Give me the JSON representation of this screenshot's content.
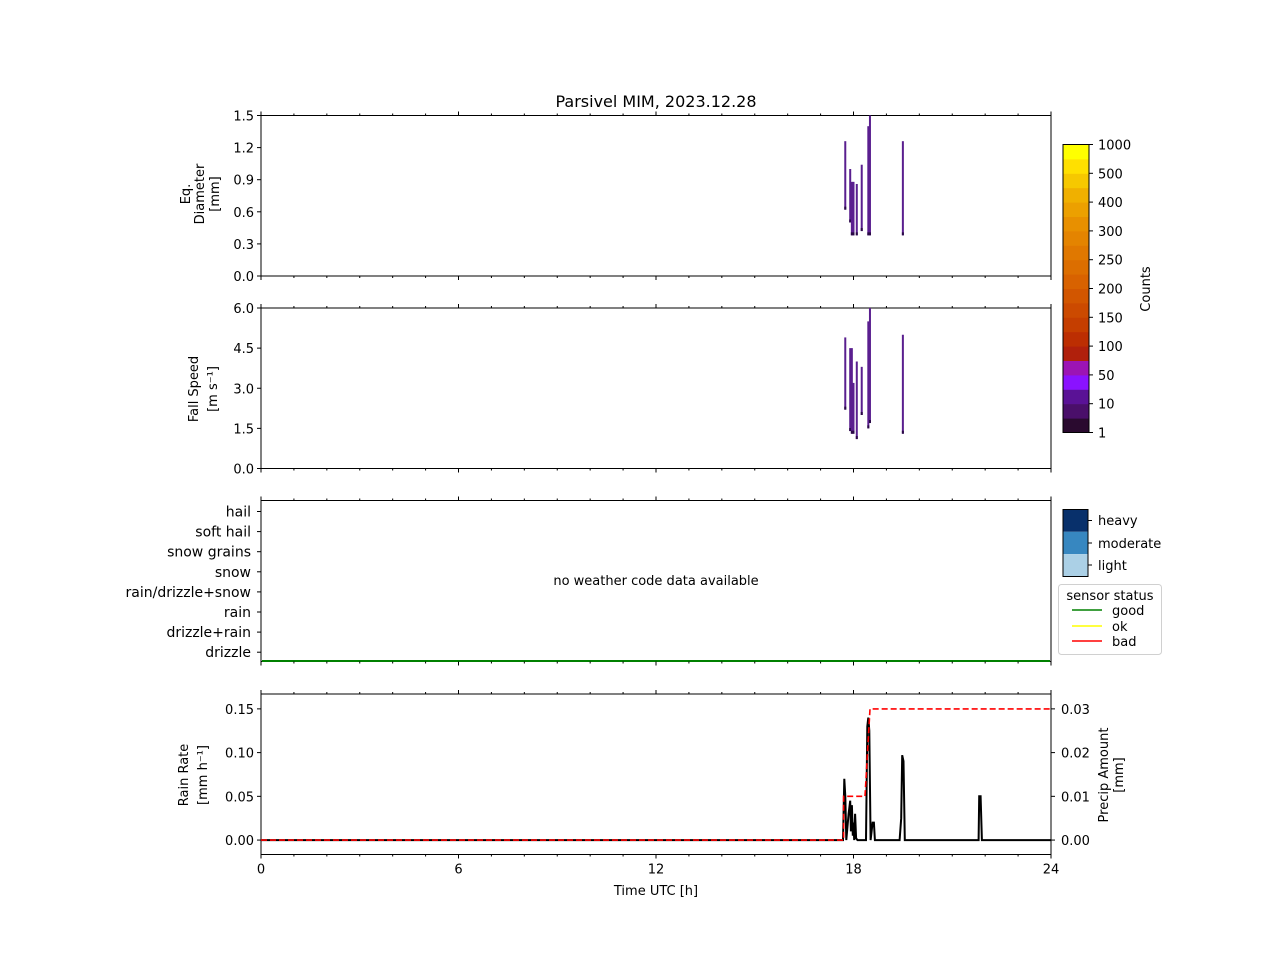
{
  "title": "Parsivel MIM, 2023.12.28",
  "colors": {
    "dsd": "#5a1f8f",
    "dsd_dark": "#2a0a45",
    "status_good": "#008000",
    "status_ok": "#ffff00",
    "status_bad": "#ff0000",
    "rain_rate": "#000000",
    "precip_amount": "#ff0000"
  },
  "colorbar": {
    "label": "Counts",
    "ticks": [
      "1000",
      "500",
      "400",
      "300",
      "250",
      "200",
      "150",
      "100",
      "50",
      "10",
      "1"
    ],
    "colors": [
      "#2a0a2f",
      "#4a0f6a",
      "#5a1296",
      "#8a12ff",
      "#9c14b4",
      "#b0200c",
      "#bc2e02",
      "#c53e00",
      "#cc4a00",
      "#d25600",
      "#d86200",
      "#dc6e00",
      "#e07800",
      "#e48400",
      "#e89000",
      "#eca000",
      "#f0b000",
      "#f6c800",
      "#ffe000",
      "#ffff00"
    ]
  },
  "weather": {
    "categories": [
      "hail",
      "soft hail",
      "snow grains",
      "snow",
      "rain/drizzle+snow",
      "rain",
      "drizzle+rain",
      "drizzle"
    ],
    "message": "no weather code data available",
    "intensity_legend": [
      {
        "label": "heavy",
        "color": "#08306b"
      },
      {
        "label": "moderate",
        "color": "#3787c0"
      },
      {
        "label": "light",
        "color": "#abd0e6"
      }
    ],
    "status_legend": {
      "title": "sensor status",
      "items": [
        {
          "label": "good",
          "color": "#008000"
        },
        {
          "label": "ok",
          "color": "#ffff00"
        },
        {
          "label": "bad",
          "color": "#ff0000"
        }
      ]
    },
    "status_value": "good"
  },
  "chart_data": [
    {
      "type": "heatmap",
      "panel": "diameter",
      "ylabel": [
        "Eq.",
        "Diameter",
        "[mm]"
      ],
      "ylim": [
        0,
        1.5
      ],
      "yticks": [
        "0.0",
        "0.3",
        "0.6",
        "0.9",
        "1.2",
        "1.5"
      ],
      "xlim": [
        0,
        24
      ],
      "columns": [
        {
          "x": 17.75,
          "y0": 0.62,
          "y1": 1.26
        },
        {
          "x": 17.9,
          "y0": 0.5,
          "y1": 1.0
        },
        {
          "x": 17.95,
          "y0": 0.38,
          "y1": 0.88
        },
        {
          "x": 18.0,
          "y0": 0.38,
          "y1": 0.88
        },
        {
          "x": 18.1,
          "y0": 0.38,
          "y1": 0.86
        },
        {
          "x": 18.25,
          "y0": 0.42,
          "y1": 1.04
        },
        {
          "x": 18.45,
          "y0": 0.38,
          "y1": 1.4
        },
        {
          "x": 18.5,
          "y0": 0.38,
          "y1": 1.5
        },
        {
          "x": 19.5,
          "y0": 0.38,
          "y1": 1.26
        }
      ]
    },
    {
      "type": "heatmap",
      "panel": "fall_speed",
      "ylabel": [
        "Fall Speed",
        "[m s⁻¹]"
      ],
      "ylim": [
        0,
        6
      ],
      "yticks": [
        "0.0",
        "1.5",
        "3.0",
        "4.5",
        "6.0"
      ],
      "xlim": [
        0,
        24
      ],
      "columns": [
        {
          "x": 17.75,
          "y0": 2.2,
          "y1": 4.9
        },
        {
          "x": 17.9,
          "y0": 1.4,
          "y1": 4.5
        },
        {
          "x": 17.95,
          "y0": 1.3,
          "y1": 4.5
        },
        {
          "x": 18.0,
          "y0": 1.3,
          "y1": 3.2
        },
        {
          "x": 18.1,
          "y0": 1.1,
          "y1": 4.0
        },
        {
          "x": 18.25,
          "y0": 2.0,
          "y1": 3.8
        },
        {
          "x": 18.45,
          "y0": 1.5,
          "y1": 5.5
        },
        {
          "x": 18.5,
          "y0": 1.7,
          "y1": 6.0
        },
        {
          "x": 19.5,
          "y0": 1.3,
          "y1": 5.0
        }
      ]
    },
    {
      "type": "line",
      "panel": "rain",
      "xlabel": "Time UTC [h]",
      "xlim": [
        0,
        24
      ],
      "xticks": [
        "0",
        "6",
        "12",
        "18",
        "24"
      ],
      "ylabel": [
        "Rain Rate",
        "[mm h⁻¹]"
      ],
      "ylim": [
        -0.0165,
        0.167
      ],
      "yticks": [
        "0.00",
        "0.05",
        "0.10",
        "0.15"
      ],
      "y2label": [
        "Precip Amount",
        "[mm]"
      ],
      "y2lim": [
        -0.0033,
        0.0334
      ],
      "y2ticks": [
        "0.00",
        "0.01",
        "0.02",
        "0.03"
      ],
      "series": [
        {
          "axis": "left",
          "x": [
            0,
            17.68,
            17.72,
            17.75,
            17.78,
            17.85,
            17.9,
            17.92,
            17.95,
            17.98,
            18.0,
            18.02,
            18.05,
            18.08,
            18.12,
            18.15,
            18.2,
            18.38,
            18.42,
            18.45,
            18.48,
            18.52,
            18.58,
            18.62,
            18.65,
            18.7,
            19.4,
            19.45,
            19.48,
            19.52,
            19.56,
            21.8,
            21.82,
            21.86,
            21.9,
            24
          ],
          "values": [
            0,
            0,
            0.07,
            0.05,
            0,
            0.03,
            0.045,
            0.01,
            0.04,
            0.005,
            0.02,
            0,
            0.03,
            0.002,
            0,
            0,
            0,
            0,
            0.13,
            0.14,
            0.125,
            0,
            0.02,
            0.02,
            0,
            0,
            0,
            0.025,
            0.097,
            0.09,
            0,
            0,
            0.05,
            0.05,
            0,
            0
          ]
        },
        {
          "axis": "right",
          "x": [
            0,
            17.7,
            17.7,
            18.35,
            18.35,
            18.5,
            18.5,
            24
          ],
          "values": [
            0,
            0,
            0.01,
            0.01,
            0.01,
            0.03,
            0.03,
            0.03
          ]
        }
      ]
    }
  ]
}
